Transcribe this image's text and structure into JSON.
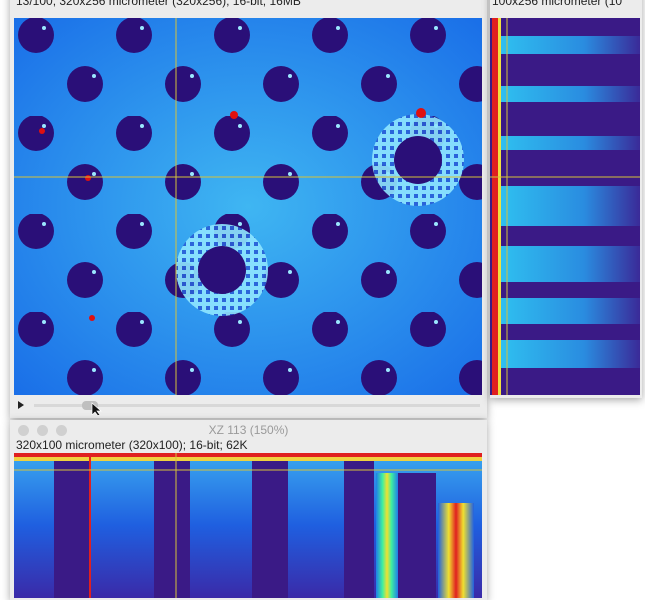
{
  "main_window": {
    "info": "13/100; 320x256 micrometer (320x256); 16-bit; 16MB"
  },
  "yz_window": {
    "info": "100x256 micrometer (10"
  },
  "xz_window": {
    "title": "XZ 113 (150%)",
    "info": "320x100 micrometer (320x100); 16-bit; 62K"
  }
}
